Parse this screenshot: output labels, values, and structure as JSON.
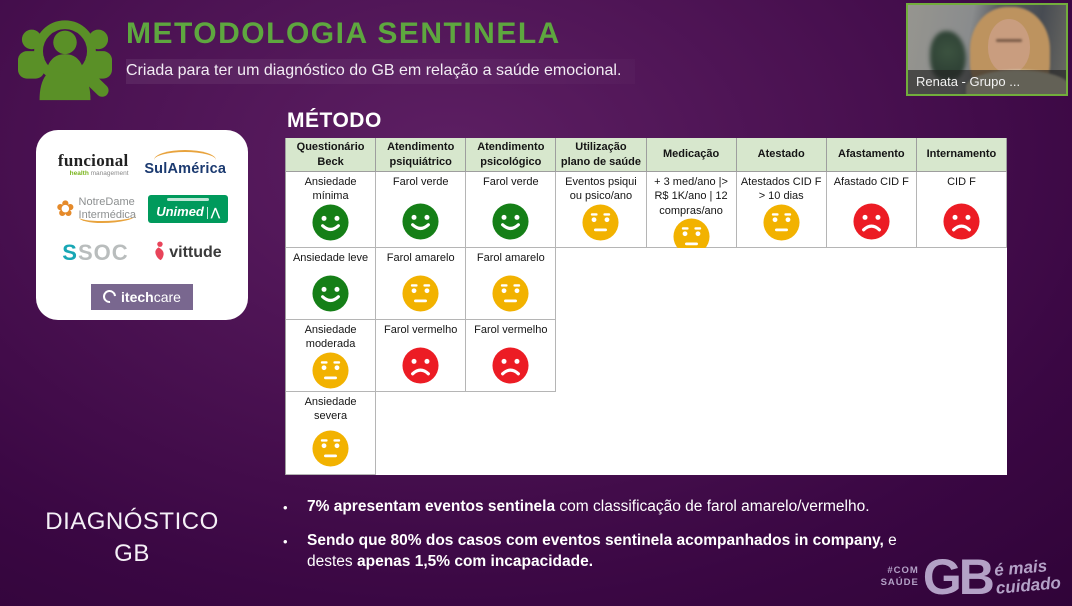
{
  "header": {
    "title": "METODOLOGIA SENTINELA",
    "subtitle": "Criada para ter um diagnóstico do GB em relação a saúde emocional."
  },
  "webcam": {
    "name_label": "Renata - Grupo ..."
  },
  "partners": {
    "funcional": {
      "name": "funcional",
      "sub_bold": "health",
      "sub_rest": " management"
    },
    "sulamerica": {
      "name": "SulAmérica"
    },
    "notredame": {
      "line1": "NotreDame",
      "line2": "Intermédica",
      "flower_glyph": "✿"
    },
    "unimed": {
      "name": "Unimed",
      "symbol": "⋀"
    },
    "soc": {
      "s": "S",
      "oc": "SOC"
    },
    "vittude": {
      "name": "vittude"
    },
    "itechcare": {
      "bold": "itech",
      "rest": "care"
    }
  },
  "method": {
    "heading": "MÉTODO",
    "table": {
      "columns": [
        "Questionário Beck",
        "Atendimento psiquiátrico",
        "Atendimento psicológico",
        "Utilização plano de saúde",
        "Medicação",
        "Atestado",
        "Afastamento",
        "Internamento"
      ],
      "rows": [
        {
          "cells": [
            {
              "text": "Ansiedade mínima",
              "face": "green"
            },
            {
              "text": "Farol verde",
              "face": "green"
            },
            {
              "text": "Farol verde",
              "face": "green"
            },
            {
              "text": "Eventos psiqui ou psico/ano",
              "face": "yellow"
            },
            {
              "text": "+ 3 med/ano |> R$ 1K/ano  |  12 compras/ano",
              "face": "yellow"
            },
            {
              "text": "Atestados CID F > 10 dias",
              "face": "yellow"
            },
            {
              "text": "Afastado CID F",
              "face": "red"
            },
            {
              "text": "CID F",
              "face": "red"
            }
          ],
          "span_rest": 0
        },
        {
          "cells": [
            {
              "text": "Ansiedade leve",
              "face": "green"
            },
            {
              "text": "Farol amarelo",
              "face": "yellow"
            },
            {
              "text": "Farol amarelo",
              "face": "yellow"
            }
          ],
          "span_rest": 5
        },
        {
          "cells": [
            {
              "text": "Ansiedade moderada",
              "face": "yellow"
            },
            {
              "text": "Farol vermelho",
              "face": "red"
            },
            {
              "text": "Farol vermelho",
              "face": "red"
            }
          ],
          "span_rest": 5
        },
        {
          "cells": [
            {
              "text": "Ansiedade severa",
              "face": "yellow"
            }
          ],
          "span_rest": 7
        }
      ]
    }
  },
  "diagnosis": {
    "line1": "DIAGNÓSTICO",
    "line2": "GB"
  },
  "bullet_char": "•",
  "bullets": [
    {
      "segments": [
        {
          "text": "7% apresentam eventos sentinela",
          "bold": true
        },
        {
          "text": " com classificação de farol amarelo/vermelho.",
          "bold": false
        }
      ]
    },
    {
      "segments": [
        {
          "text": "Sendo que 80% dos casos com eventos sentinela acompanhados in company,",
          "bold": true
        },
        {
          "text": " e destes ",
          "bold": false
        },
        {
          "text": "apenas 1,5% com incapacidade.",
          "bold": true
        }
      ]
    }
  ],
  "brand": {
    "hash_line1": "#COM",
    "hash_line2": "SAÚDE",
    "gb": "GB",
    "tagline_line1": "é mais",
    "tagline_line2": "cuidado"
  },
  "colors": {
    "accent_green": "#5ea73f",
    "icon_green": "#5a9027",
    "header_row_bg": "#d7e7cd",
    "background_purple": "#4b1252",
    "webcam_border": "#72ad3c",
    "brand_lavender": "#b3a1c6",
    "faces": {
      "green": "#157f17",
      "yellow": "#f2b200",
      "red": "#ec1c24"
    }
  }
}
